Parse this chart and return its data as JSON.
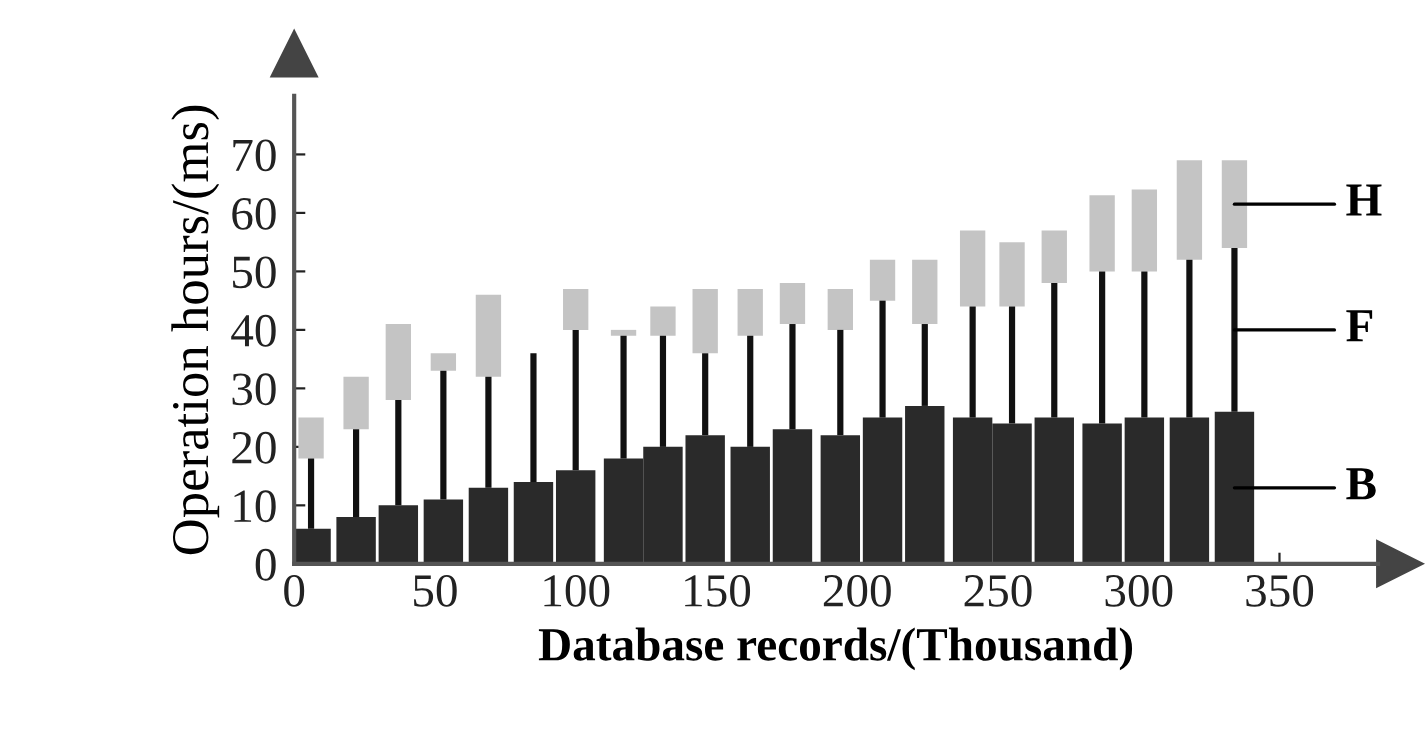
{
  "chart_data": {
    "type": "bar",
    "stacked": true,
    "xlabel": "Database records/(Thousand)",
    "ylabel": "Operation hours/(ms)",
    "x": [
      6,
      22,
      37,
      53,
      69,
      85,
      100,
      117,
      131,
      146,
      162,
      177,
      194,
      209,
      224,
      241,
      255,
      270,
      287,
      302,
      318,
      334
    ],
    "series": [
      {
        "name": "B",
        "color": "#2a2a2a",
        "values": [
          6,
          8,
          10,
          11,
          13,
          14,
          16,
          18,
          20,
          22,
          20,
          23,
          22,
          25,
          27,
          25,
          24,
          25,
          24,
          25,
          25,
          26
        ]
      },
      {
        "name": "F",
        "color": "#111111",
        "values": [
          12,
          15,
          18,
          22,
          19,
          22,
          24,
          21,
          19,
          14,
          19,
          18,
          18,
          20,
          14,
          19,
          20,
          23,
          26,
          25,
          27,
          28
        ]
      },
      {
        "name": "H",
        "color": "#c4c4c4",
        "values": [
          7,
          9,
          13,
          3,
          14,
          null,
          7,
          1,
          5,
          11,
          8,
          7,
          7,
          7,
          11,
          13,
          11,
          9,
          13,
          14,
          17,
          15
        ]
      }
    ],
    "xlim": [
      0,
      385
    ],
    "xticks": [
      0,
      50,
      100,
      150,
      200,
      250,
      300,
      350
    ],
    "ylim": [
      0,
      80
    ],
    "yticks": [
      0,
      10,
      20,
      30,
      40,
      50,
      60,
      70
    ],
    "grid": false,
    "legend": false
  }
}
